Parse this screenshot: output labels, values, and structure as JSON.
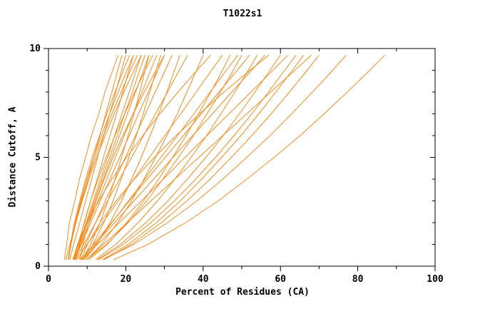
{
  "chart_data": {
    "type": "line",
    "title": "T1022s1",
    "xlabel": "Percent of Residues (CA)",
    "ylabel": "Distance Cutoff, A",
    "xlim": [
      0,
      100
    ],
    "ylim": [
      0,
      10
    ],
    "grid": false,
    "legend": "none",
    "line_color": "#f58c1e",
    "axis_color": "#000000",
    "background": "#ffffff",
    "x_ticks": {
      "major": [
        0,
        20,
        40,
        60,
        80,
        100
      ],
      "minor": [
        10,
        30,
        50,
        70,
        90
      ]
    },
    "y_ticks": {
      "major": [
        0,
        5,
        10
      ],
      "minor": [
        1,
        2,
        3,
        4,
        6,
        7,
        8,
        9
      ]
    },
    "y_samples": [
      0.3,
      1,
      2,
      3,
      4,
      5,
      6,
      7,
      8,
      9,
      9.7
    ],
    "series": [
      [
        4.1,
        4.7,
        5.4,
        6.8,
        8.0,
        9.6,
        11.1,
        13.0,
        14.6,
        16.6,
        18.0
      ],
      [
        5.5,
        6.5,
        8.1,
        9.6,
        11.2,
        12.7,
        14.3,
        15.8,
        17.4,
        18.9,
        20.0
      ],
      [
        5.1,
        5.7,
        6.7,
        8.1,
        9.6,
        11.3,
        13.2,
        15.1,
        17.2,
        19.4,
        21.0
      ],
      [
        6.5,
        7.6,
        9.3,
        10.9,
        12.6,
        14.2,
        15.9,
        17.6,
        19.2,
        20.8,
        22.0
      ],
      [
        5.1,
        5.8,
        7.0,
        8.5,
        10.2,
        12.1,
        14.2,
        16.4,
        18.8,
        21.2,
        23.0
      ],
      [
        6.6,
        7.9,
        9.7,
        11.6,
        13.4,
        15.3,
        17.1,
        19.0,
        20.9,
        22.7,
        24.0
      ],
      [
        5.2,
        5.8,
        7.1,
        8.7,
        10.5,
        12.5,
        14.7,
        17.0,
        19.5,
        22.1,
        24.0
      ],
      [
        6.6,
        8.0,
        9.9,
        11.9,
        13.8,
        15.8,
        17.8,
        19.7,
        21.7,
        23.6,
        25.0
      ],
      [
        8.7,
        10.9,
        13.3,
        15.4,
        17.2,
        18.9,
        20.6,
        22.1,
        23.6,
        25.0,
        26.0
      ],
      [
        6.6,
        8.1,
        10.1,
        12.2,
        14.2,
        16.3,
        18.4,
        20.4,
        22.5,
        24.6,
        26.0
      ],
      [
        7.2,
        7.8,
        9.2,
        10.9,
        12.8,
        14.9,
        17.2,
        19.7,
        22.3,
        25.0,
        27.0
      ],
      [
        6.7,
        8.3,
        10.5,
        12.8,
        15.1,
        17.3,
        19.6,
        21.9,
        24.2,
        26.4,
        28.0
      ],
      [
        8.9,
        11.5,
        14.3,
        16.7,
        18.8,
        20.8,
        22.7,
        24.5,
        26.2,
        27.9,
        29.0
      ],
      [
        8.2,
        8.9,
        10.4,
        12.3,
        14.4,
        16.7,
        19.2,
        21.9,
        24.8,
        27.8,
        30.0
      ],
      [
        7.8,
        9.6,
        12.2,
        14.7,
        17.3,
        19.9,
        22.5,
        25.1,
        27.6,
        30.2,
        32.0
      ],
      [
        6.9,
        9.1,
        12.2,
        15.3,
        18.4,
        21.5,
        24.6,
        27.7,
        30.8,
        33.8,
        36.0
      ],
      [
        9.9,
        13.7,
        17.9,
        21.5,
        24.7,
        27.7,
        30.6,
        33.3,
        35.8,
        38.3,
        40.0
      ],
      [
        7.2,
        10.0,
        14.0,
        18.1,
        22.1,
        26.1,
        30.1,
        34.2,
        38.2,
        42.2,
        45.0
      ],
      [
        10.5,
        15.2,
        20.2,
        24.6,
        28.5,
        32.1,
        35.6,
        38.8,
        42.0,
        45.0,
        47.0
      ],
      [
        9.3,
        12.2,
        16.4,
        20.7,
        24.9,
        29.1,
        33.4,
        37.6,
        41.8,
        46.0,
        49.0
      ],
      [
        9.9,
        15.0,
        20.6,
        25.4,
        29.6,
        33.6,
        37.5,
        41.0,
        44.5,
        47.8,
        50.0
      ],
      [
        8.4,
        11.6,
        16.3,
        20.9,
        25.5,
        30.2,
        34.9,
        39.5,
        44.1,
        48.8,
        52.0
      ],
      [
        12.1,
        17.4,
        23.2,
        28.2,
        32.7,
        36.9,
        40.9,
        44.6,
        48.2,
        51.7,
        54.0
      ],
      [
        8.5,
        12.0,
        17.1,
        22.1,
        27.2,
        32.2,
        37.3,
        42.4,
        47.4,
        52.5,
        56.0
      ],
      [
        12.6,
        18.6,
        25.2,
        30.9,
        35.9,
        40.7,
        45.2,
        49.4,
        53.4,
        57.3,
        60.0
      ],
      [
        8.7,
        12.7,
        18.3,
        24.0,
        29.7,
        35.3,
        41.0,
        46.7,
        52.4,
        58.0,
        62.0
      ],
      [
        12.9,
        19.4,
        26.5,
        32.6,
        38.1,
        43.2,
        48.0,
        52.6,
        56.9,
        61.1,
        64.0
      ],
      [
        14.0,
        20.6,
        27.9,
        34.1,
        39.6,
        44.8,
        49.8,
        54.4,
        58.8,
        63.1,
        66.0
      ],
      [
        9.9,
        14.2,
        20.4,
        26.5,
        32.7,
        38.9,
        45.1,
        51.3,
        57.5,
        63.7,
        68.0
      ],
      [
        14.4,
        21.4,
        29.2,
        35.8,
        41.8,
        47.3,
        52.6,
        57.6,
        62.3,
        66.9,
        70.0
      ],
      [
        14.1,
        22.1,
        30.8,
        38.4,
        45.1,
        51.3,
        57.3,
        62.9,
        68.3,
        73.5,
        77.0
      ],
      [
        16.8,
        25.7,
        35.5,
        43.9,
        51.3,
        58.4,
        65.1,
        71.3,
        77.3,
        83.1,
        87.0
      ],
      [
        4.5,
        5.5,
        7.1,
        8.6,
        10.2,
        11.7,
        13.3,
        14.8,
        16.4,
        17.9,
        19.0
      ],
      [
        5.1,
        5.7,
        6.9,
        8.3,
        9.9,
        11.7,
        13.7,
        15.8,
        18.0,
        20.3,
        22.0
      ],
      [
        6.7,
        8.5,
        10.9,
        13.4,
        15.9,
        18.4,
        20.9,
        23.3,
        25.8,
        28.3,
        30.0
      ],
      [
        9.4,
        12.5,
        15.9,
        18.9,
        21.5,
        24.0,
        26.3,
        28.5,
        30.6,
        32.6,
        34.0
      ],
      [
        6.3,
        7.5,
        9.9,
        13.0,
        16.4,
        20.2,
        24.4,
        28.8,
        33.5,
        38.4,
        42.0
      ],
      [
        8.4,
        10.1,
        13.3,
        17.5,
        22.2,
        27.4,
        33.0,
        39.1,
        45.4,
        52.1,
        57.0
      ]
    ]
  }
}
